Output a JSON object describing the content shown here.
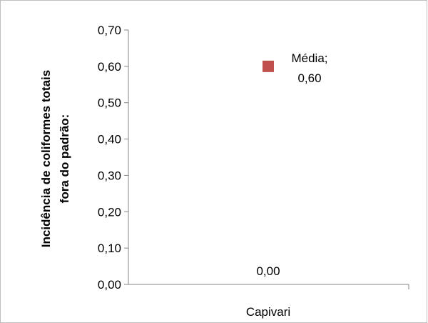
{
  "chart_data": {
    "type": "scatter",
    "categories": [
      "Capivari"
    ],
    "ylabel_lines": [
      "Incidência de coliformes totais",
      "fora do padrão:"
    ],
    "ylim": [
      0,
      0.7
    ],
    "yticks": [
      "0,00",
      "0,10",
      "0,20",
      "0,30",
      "0,40",
      "0,50",
      "0,60",
      "0,70"
    ],
    "grid": false,
    "points": [
      {
        "value": 0.6,
        "label_line1": "Média;",
        "label_line2": "0,60",
        "color": "#c0504d",
        "marker": "square"
      }
    ],
    "zero_label": "0,00"
  }
}
